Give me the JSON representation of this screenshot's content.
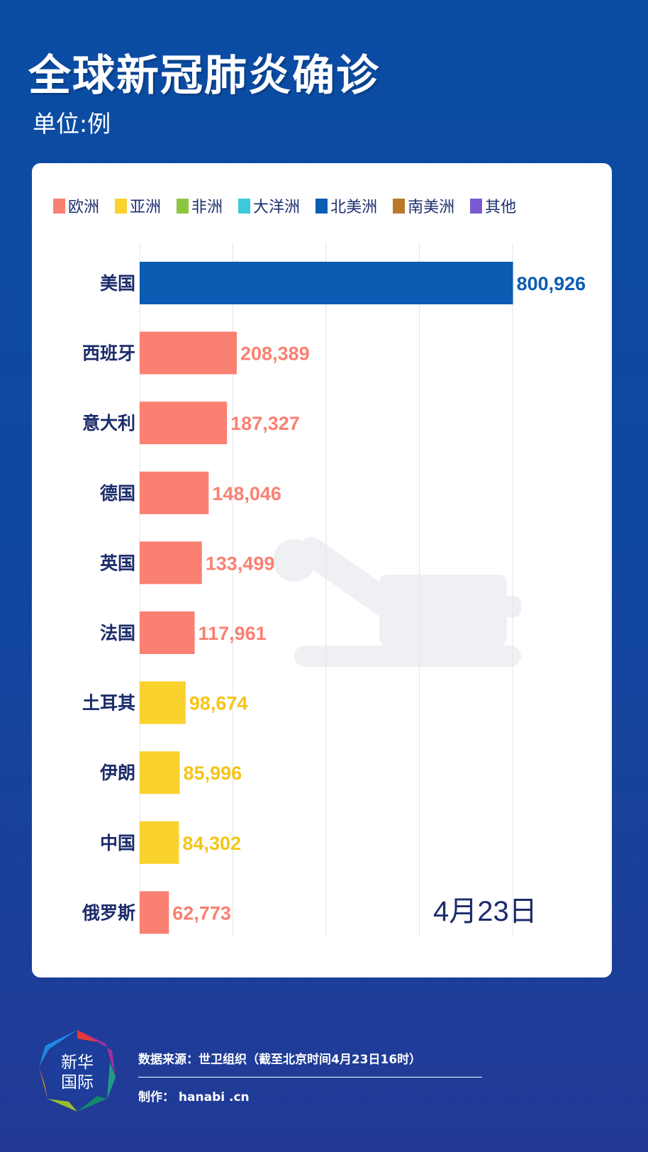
{
  "header": {
    "title": "全球新冠肺炎确诊",
    "unit": "单位:例"
  },
  "legend": [
    {
      "label": "欧洲",
      "color": "#fa8072"
    },
    {
      "label": "亚洲",
      "color": "#f9d22e"
    },
    {
      "label": "非洲",
      "color": "#8cc63f"
    },
    {
      "label": "大洋洲",
      "color": "#3ccbda"
    },
    {
      "label": "北美洲",
      "color": "#0b5cb3"
    },
    {
      "label": "南美洲",
      "color": "#b87a2a"
    },
    {
      "label": "其他",
      "color": "#7b5ad1"
    }
  ],
  "chart_data": {
    "type": "bar",
    "orientation": "horizontal",
    "categories": [
      "美国",
      "西班牙",
      "意大利",
      "德国",
      "英国",
      "法国",
      "土耳其",
      "伊朗",
      "中国",
      "俄罗斯"
    ],
    "values": [
      800926,
      208389,
      187327,
      148046,
      133499,
      117961,
      98674,
      85996,
      84302,
      62773
    ],
    "value_labels": [
      "800,926",
      "208,389",
      "187,327",
      "148,046",
      "133,499",
      "117,961",
      "98,674",
      "85,996",
      "84,302",
      "62,773"
    ],
    "groups": [
      "北美洲",
      "欧洲",
      "欧洲",
      "欧洲",
      "欧洲",
      "欧洲",
      "亚洲",
      "亚洲",
      "亚洲",
      "欧洲"
    ],
    "xlim": [
      0,
      800000
    ],
    "grid": true,
    "legend_position": "top",
    "date_label": "4月23日"
  },
  "footer": {
    "source": "数据来源：世卫组织（截至北京时间4月23日16时）",
    "credit": "制作： hanabi .cn",
    "logo_text": "新华国际"
  }
}
